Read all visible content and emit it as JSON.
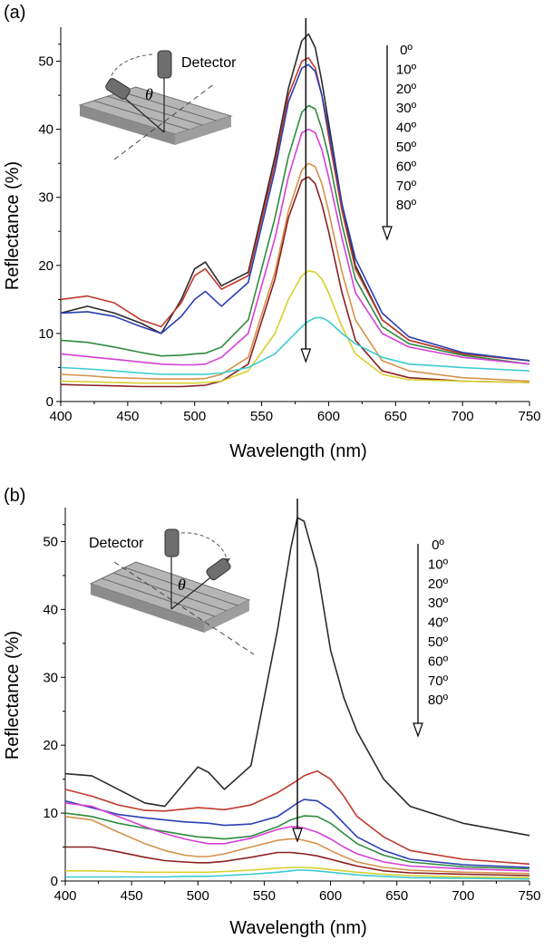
{
  "chart_data": [
    {
      "type": "line",
      "panel_label": "(a)",
      "xlabel": "Wavelength (nm)",
      "ylabel": "Reflectance (%)",
      "xlim": [
        400,
        750
      ],
      "ylim": [
        0,
        55
      ],
      "xticks": [
        400,
        450,
        500,
        550,
        600,
        650,
        700,
        750
      ],
      "yticks": [
        0,
        10,
        20,
        30,
        40,
        50
      ],
      "legend": [
        "0º",
        "10º",
        "20º",
        "30º",
        "40º",
        "50º",
        "60º",
        "70º",
        "80º"
      ],
      "arrow_x": 583,
      "inset_detector_label": "Detector",
      "inset_theta_label": "θ",
      "x": [
        400,
        420,
        440,
        460,
        475,
        490,
        500,
        508,
        520,
        540,
        560,
        570,
        580,
        585,
        590,
        595,
        600,
        610,
        620,
        640,
        660,
        700,
        750
      ],
      "series": [
        {
          "color": "#2b2b2b",
          "values": [
            13,
            14,
            13,
            11.5,
            10,
            15,
            19.5,
            20.5,
            17,
            19,
            36,
            46,
            53,
            54,
            52,
            47,
            41,
            29,
            20,
            12,
            9,
            7,
            6
          ]
        },
        {
          "color": "#c0392b",
          "values": [
            15,
            15.5,
            14.5,
            12,
            11,
            14.5,
            18.5,
            19.5,
            16.5,
            18.5,
            35,
            45,
            50,
            50.5,
            49,
            45,
            39,
            28,
            19.5,
            12,
            9,
            7,
            6
          ]
        },
        {
          "color": "#2b3fb4",
          "values": [
            13,
            13.2,
            12.5,
            11,
            10,
            12.5,
            15,
            16.2,
            14,
            17.5,
            34,
            44,
            49,
            49.5,
            48.5,
            45,
            40,
            29,
            21,
            13,
            9.5,
            7.2,
            6
          ]
        },
        {
          "color": "#2e8b3e",
          "values": [
            9,
            8.7,
            8,
            7.2,
            6.7,
            6.8,
            7,
            7.1,
            8,
            12,
            27,
            36,
            42.5,
            43.5,
            43,
            40,
            36,
            26,
            18,
            11,
            8.5,
            6.8,
            5.5
          ]
        },
        {
          "color": "#d63fd6",
          "values": [
            7,
            6.6,
            6.2,
            5.8,
            5.5,
            5.4,
            5.4,
            5.5,
            6.5,
            10,
            24,
            33,
            39.5,
            40,
            39.5,
            37,
            33,
            24,
            16,
            10,
            8,
            6.5,
            5.5
          ]
        },
        {
          "color": "#d4924a",
          "values": [
            4,
            3.8,
            3.5,
            3.4,
            3.3,
            3.3,
            3.3,
            3.4,
            4,
            6.5,
            19,
            28,
            34,
            35,
            34.5,
            32,
            28,
            19,
            12,
            6,
            4.5,
            3.5,
            3
          ]
        },
        {
          "color": "#8b2020",
          "values": [
            2.5,
            2.4,
            2.3,
            2.2,
            2.2,
            2.2,
            2.3,
            2.4,
            3,
            5.5,
            18,
            27,
            32.5,
            33,
            32,
            29,
            25,
            16,
            9,
            4.5,
            3.5,
            3,
            2.8
          ]
        },
        {
          "color": "#d8d02e",
          "values": [
            3,
            2.9,
            2.8,
            2.7,
            2.7,
            2.7,
            2.7,
            2.8,
            3,
            4.5,
            10,
            15,
            18.5,
            19.2,
            19,
            18,
            16,
            11,
            7,
            4,
            3.2,
            3,
            2.8
          ]
        },
        {
          "color": "#3ccad2",
          "values": [
            5,
            4.8,
            4.5,
            4.2,
            4,
            4,
            4,
            4,
            4.2,
            5,
            7,
            9,
            11,
            11.8,
            12.3,
            12.3,
            11.8,
            10,
            8.5,
            6.5,
            5.5,
            5,
            4.5
          ]
        }
      ]
    },
    {
      "type": "line",
      "panel_label": "(b)",
      "xlabel": "Wavelength (nm)",
      "ylabel": "Reflectance (%)",
      "xlim": [
        400,
        750
      ],
      "ylim": [
        0,
        55
      ],
      "xticks": [
        400,
        450,
        500,
        550,
        600,
        650,
        700,
        750
      ],
      "yticks": [
        0,
        10,
        20,
        30,
        40,
        50
      ],
      "legend": [
        "0º",
        "10º",
        "20º",
        "30º",
        "40º",
        "50º",
        "60º",
        "70º",
        "80º"
      ],
      "arrow_x": 575,
      "inset_detector_label": "Detector",
      "inset_theta_label": "θ",
      "x": [
        400,
        420,
        440,
        460,
        475,
        490,
        500,
        508,
        520,
        540,
        560,
        570,
        575,
        580,
        590,
        600,
        610,
        620,
        640,
        660,
        700,
        750
      ],
      "series": [
        {
          "color": "#2b2b2b",
          "values": [
            15.8,
            15.5,
            13.5,
            11.5,
            11,
            14.5,
            16.8,
            16,
            13.5,
            17,
            37,
            49,
            53.5,
            53,
            46,
            34,
            27,
            22,
            15,
            11,
            8.5,
            6.7
          ]
        },
        {
          "color": "#c0392b",
          "values": [
            13.5,
            12.5,
            11.2,
            10.4,
            10.3,
            10.6,
            10.8,
            10.7,
            10.5,
            11.2,
            13,
            14.2,
            14.8,
            15.5,
            16.2,
            15,
            12.5,
            9.5,
            6.5,
            4.5,
            3.2,
            2.5
          ]
        },
        {
          "color": "#2b3fb4",
          "values": [
            11.8,
            10.8,
            9.8,
            9.3,
            9,
            8.7,
            8.6,
            8.5,
            8.2,
            8.4,
            9.5,
            10.8,
            11.5,
            12,
            11.8,
            10.5,
            8.5,
            6.5,
            4.5,
            3.2,
            2.4,
            2
          ]
        },
        {
          "color": "#2e8b3e",
          "values": [
            10,
            9.5,
            8.5,
            7.8,
            7.3,
            6.8,
            6.5,
            6.4,
            6.2,
            6.6,
            8,
            9,
            9.3,
            9.6,
            9.5,
            8.5,
            7,
            5.5,
            3.8,
            2.8,
            2.1,
            1.8
          ]
        },
        {
          "color": "#d63fd6",
          "values": [
            11.5,
            11,
            9.5,
            8,
            7,
            6.2,
            5.8,
            5.5,
            5.5,
            6.3,
            7.6,
            8,
            8,
            7.8,
            7.2,
            6.2,
            5,
            4,
            2.8,
            2.2,
            1.8,
            1.5
          ]
        },
        {
          "color": "#d4924a",
          "values": [
            9.5,
            9,
            7.2,
            5.5,
            4.5,
            3.8,
            3.6,
            3.6,
            4,
            5,
            6,
            6.2,
            6.2,
            6,
            5.5,
            4.5,
            3.6,
            2.8,
            2,
            1.6,
            1.3,
            1.1
          ]
        },
        {
          "color": "#8b2020",
          "values": [
            5,
            5,
            4.3,
            3.5,
            3,
            2.8,
            2.7,
            2.7,
            2.9,
            3.5,
            4.2,
            4.2,
            4.1,
            4,
            3.7,
            3.2,
            2.7,
            2.2,
            1.5,
            1.2,
            1,
            0.8
          ]
        },
        {
          "color": "#d8d02e",
          "values": [
            1.5,
            1.5,
            1.4,
            1.3,
            1.3,
            1.3,
            1.3,
            1.3,
            1.4,
            1.6,
            1.9,
            2,
            2,
            2,
            1.9,
            1.7,
            1.5,
            1.3,
            1,
            0.8,
            0.6,
            0.5
          ]
        },
        {
          "color": "#3ccad2",
          "values": [
            0.6,
            0.6,
            0.6,
            0.6,
            0.6,
            0.7,
            0.7,
            0.7,
            0.8,
            1,
            1.3,
            1.5,
            1.6,
            1.6,
            1.5,
            1.3,
            1.1,
            0.9,
            0.7,
            0.5,
            0.4,
            0.3
          ]
        }
      ]
    }
  ]
}
